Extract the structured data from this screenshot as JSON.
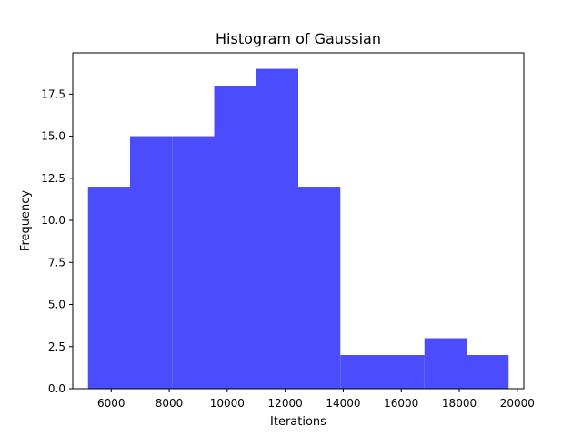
{
  "chart_data": {
    "type": "bar",
    "title": "Histogram of Gaussian",
    "xlabel": "Iterations",
    "ylabel": "Frequency",
    "bin_edges": [
      5200,
      6650,
      8100,
      9550,
      11000,
      12450,
      13900,
      15350,
      16800,
      18250,
      19700
    ],
    "counts": [
      12,
      15,
      15,
      18,
      19,
      12,
      2,
      2,
      3,
      2
    ],
    "bar_color": "#4c4cff",
    "xlim": [
      4675,
      20225
    ],
    "ylim": [
      0,
      19.95
    ],
    "x_ticks": [
      6000,
      8000,
      10000,
      12000,
      14000,
      16000,
      18000,
      20000
    ],
    "x_tick_labels": [
      "6000",
      "8000",
      "10000",
      "12000",
      "14000",
      "16000",
      "18000",
      "20000"
    ],
    "y_ticks": [
      0,
      2.5,
      5,
      7.5,
      10,
      12.5,
      15,
      17.5
    ],
    "y_tick_labels": [
      "0.0",
      "2.5",
      "5.0",
      "7.5",
      "10.0",
      "12.5",
      "15.0",
      "17.5"
    ],
    "grid": false,
    "legend": "none"
  }
}
